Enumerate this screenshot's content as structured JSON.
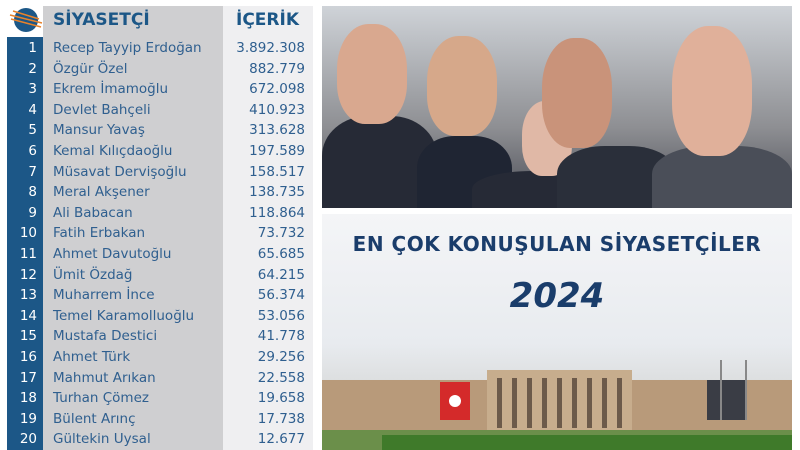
{
  "table": {
    "header_name": "SİYASETÇİ",
    "header_value": "İÇERİK",
    "rows": [
      {
        "rank": "1",
        "name": "Recep Tayyip Erdoğan",
        "value": "3.892.308"
      },
      {
        "rank": "2",
        "name": "Özgür Özel",
        "value": "882.779"
      },
      {
        "rank": "3",
        "name": "Ekrem İmamoğlu",
        "value": "672.098"
      },
      {
        "rank": "4",
        "name": "Devlet Bahçeli",
        "value": "410.923"
      },
      {
        "rank": "5",
        "name": "Mansur Yavaş",
        "value": "313.628"
      },
      {
        "rank": "6",
        "name": "Kemal Kılıçdaoğlu",
        "value": "197.589"
      },
      {
        "rank": "7",
        "name": "Müsavat Dervişoğlu",
        "value": "158.517"
      },
      {
        "rank": "8",
        "name": "Meral Akşener",
        "value": "138.735"
      },
      {
        "rank": "9",
        "name": "Ali Babacan",
        "value": "118.864"
      },
      {
        "rank": "10",
        "name": "Fatih Erbakan",
        "value": "73.732"
      },
      {
        "rank": "11",
        "name": "Ahmet Davutoğlu",
        "value": "65.685"
      },
      {
        "rank": "12",
        "name": "Ümit Özdağ",
        "value": "64.215"
      },
      {
        "rank": "13",
        "name": "Muharrem İnce",
        "value": "56.374"
      },
      {
        "rank": "14",
        "name": "Temel Karamolluoğlu",
        "value": "53.056"
      },
      {
        "rank": "15",
        "name": "Mustafa Destici",
        "value": "41.778"
      },
      {
        "rank": "16",
        "name": "Ahmet Türk",
        "value": "29.256"
      },
      {
        "rank": "17",
        "name": "Mahmut Arıkan",
        "value": "22.558"
      },
      {
        "rank": "18",
        "name": "Turhan Çömez",
        "value": "19.658"
      },
      {
        "rank": "19",
        "name": "Bülent Arınç",
        "value": "17.738"
      },
      {
        "rank": "20",
        "name": "Gültekin Uysal",
        "value": "12.677"
      }
    ]
  },
  "banner": {
    "title": "EN ÇOK KONUŞULAN SİYASETÇİLER",
    "year": "2024"
  },
  "colors": {
    "primary": "#1c5787",
    "name_column": "#cfcfd1",
    "value_column": "#efeff1",
    "title": "#1a3d6b"
  }
}
